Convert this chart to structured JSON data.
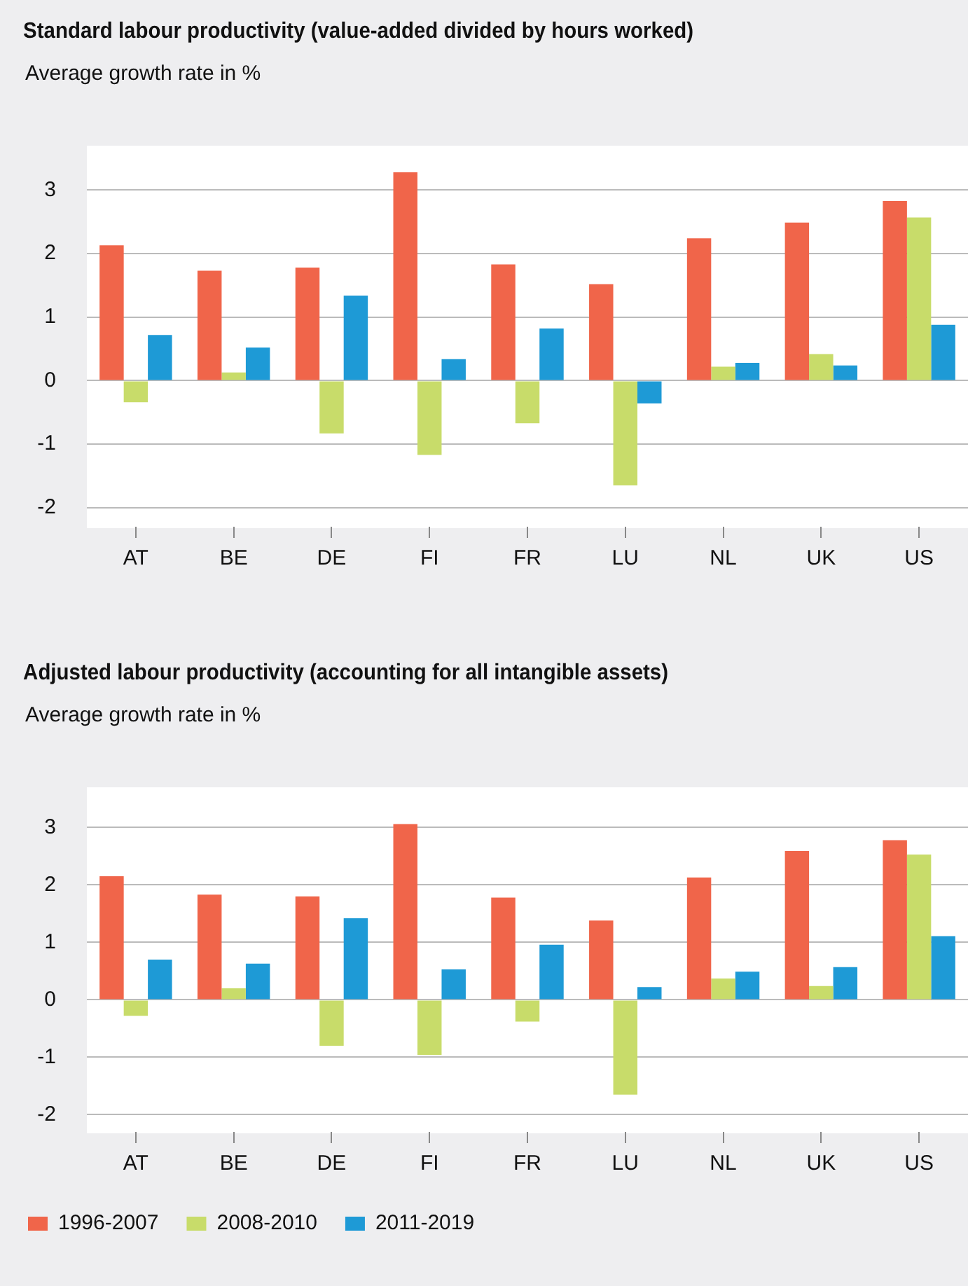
{
  "chart_data": [
    {
      "type": "bar",
      "title": "Standard labour productivity (value-added divided by hours worked)",
      "subtitle": "Average growth rate in %",
      "categories": [
        "AT",
        "BE",
        "DE",
        "FI",
        "FR",
        "LU",
        "NL",
        "UK",
        "US"
      ],
      "series": [
        {
          "color": "#f0654a",
          "values": [
            2.13,
            1.73,
            1.78,
            3.28,
            1.83,
            1.52,
            2.24,
            2.49,
            2.83
          ]
        },
        {
          "color": "#c8dc6a",
          "values": [
            -0.34,
            0.13,
            -0.83,
            -1.17,
            -0.67,
            -1.65,
            0.22,
            0.42,
            2.57
          ]
        },
        {
          "color": "#1e9ad6",
          "values": [
            0.72,
            0.52,
            1.34,
            0.34,
            0.82,
            -0.36,
            0.28,
            0.24,
            0.88
          ]
        }
      ],
      "ylim": [
        -2.3,
        3.7
      ],
      "yticks": [
        -2,
        -1,
        0,
        1,
        2,
        3
      ],
      "grid": "y",
      "legend": false
    },
    {
      "type": "bar",
      "title": "Adjusted labour productivity (accounting for all intangible assets)",
      "subtitle": "Average growth rate in %",
      "categories": [
        "AT",
        "BE",
        "DE",
        "FI",
        "FR",
        "LU",
        "NL",
        "UK",
        "US"
      ],
      "series": [
        {
          "name": "1996-2007",
          "color": "#f0654a",
          "values": [
            2.15,
            1.83,
            1.8,
            3.06,
            1.78,
            1.38,
            2.13,
            2.59,
            2.78
          ]
        },
        {
          "name": "2008-2010",
          "color": "#c8dc6a",
          "values": [
            -0.28,
            0.2,
            -0.8,
            -0.96,
            -0.38,
            -1.65,
            0.37,
            0.24,
            2.53
          ]
        },
        {
          "name": "2011-2019",
          "color": "#1e9ad6",
          "values": [
            0.7,
            0.63,
            1.42,
            0.53,
            0.96,
            0.22,
            0.49,
            0.57,
            1.11
          ]
        }
      ],
      "ylim": [
        -2.3,
        3.7
      ],
      "yticks": [
        -2,
        -1,
        0,
        1,
        2,
        3
      ],
      "grid": "y",
      "legend": "bottom left"
    }
  ]
}
